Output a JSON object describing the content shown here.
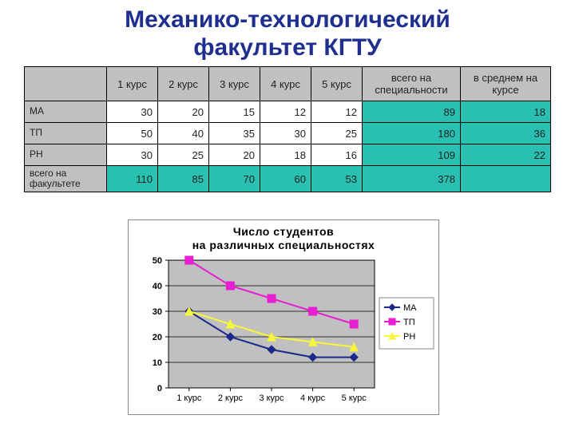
{
  "title_line1": "Механико-технологический",
  "title_line2": "факультет КГТУ",
  "title_color": "#1f2f8f",
  "table": {
    "columns": [
      "",
      "1 курс",
      "2 курс",
      "3 курс",
      "4 курс",
      "5 курс",
      "всего на специальности",
      "в среднем на курсе"
    ],
    "rows": [
      {
        "label": "МА",
        "cells": [
          30,
          20,
          15,
          12,
          12
        ]
      },
      {
        "label": "ТП",
        "cells": [
          50,
          40,
          35,
          30,
          25
        ]
      },
      {
        "label": "РН",
        "cells": [
          30,
          25,
          20,
          18,
          16
        ]
      }
    ],
    "row_totals": [
      89,
      180,
      109
    ],
    "row_avgs": [
      18,
      36,
      22
    ],
    "footer_label": "всего на факультете",
    "footer_cells": [
      110,
      85,
      70,
      60,
      53
    ],
    "footer_total": 378,
    "header_bg": "#c0c0c0",
    "teal_bg": "#29c0b1",
    "border_color": "#000000"
  },
  "chart": {
    "type": "line",
    "title_line1": "Число студентов",
    "title_line2": "на различных специальностях",
    "title_fontsize": 14,
    "label_fontsize": 11,
    "background_color": "#ffffff",
    "plot_bg_color": "#c0c0c0",
    "grid_color": "#000000",
    "axis_color": "#000000",
    "ylim": [
      0,
      50
    ],
    "ytick_step": 10,
    "x_categories": [
      "1 курс",
      "2 курс",
      "3 курс",
      "4 курс",
      "5 курс"
    ],
    "series": [
      {
        "name": "МА",
        "color": "#1b2a8a",
        "marker": "diamond",
        "values": [
          30,
          20,
          15,
          12,
          12
        ]
      },
      {
        "name": "ТП",
        "color": "#e71ed2",
        "marker": "square",
        "values": [
          50,
          40,
          35,
          30,
          25
        ]
      },
      {
        "name": "РН",
        "color": "#f7f73a",
        "marker": "triangle",
        "values": [
          30,
          25,
          20,
          18,
          16
        ]
      }
    ],
    "line_width": 2,
    "marker_size": 5,
    "legend_pos": "right"
  }
}
